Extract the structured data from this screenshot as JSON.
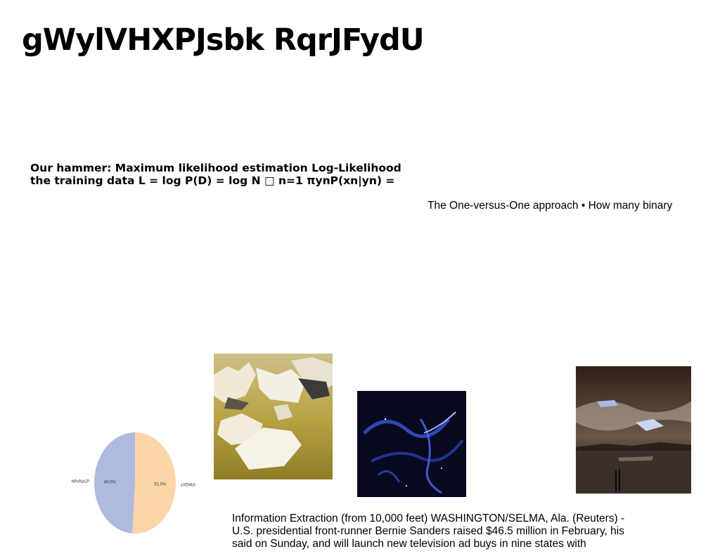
{
  "title": "gWylVHXPJsbk RqrJFydU",
  "lecture_text": {
    "line1": "Our hammer: Maximum likelihood estimation Log-Likelihood",
    "line2": "the training data L = log P(D) = log N □ n=1 πynP(xn|yn) ="
  },
  "side_text": "The One-versus-One approach • How many binary",
  "caption": {
    "line1": "Information Extraction (from 10,000 feet) WASHINGTON/SELMA, Ala. (Reuters) -",
    "line2": "U.S. presidential front-runner Bernie Sanders raised $46.5 million in February, his",
    "line3": "said on Sunday, and will launch new television ad buys in nine states with"
  },
  "chart_data": {
    "type": "pie",
    "title": "",
    "slices": [
      {
        "label": "hRvNzLP",
        "value": 49.0,
        "display": "49.0%",
        "color": "#aebade"
      },
      {
        "label": "zXDMzt",
        "value": 51.0,
        "display": "51.0%",
        "color": "#fbd6a8"
      }
    ]
  },
  "images": [
    {
      "name": "ice-floes-photo"
    },
    {
      "name": "blue-nebula-photo"
    },
    {
      "name": "beach-sunset-photo"
    }
  ]
}
